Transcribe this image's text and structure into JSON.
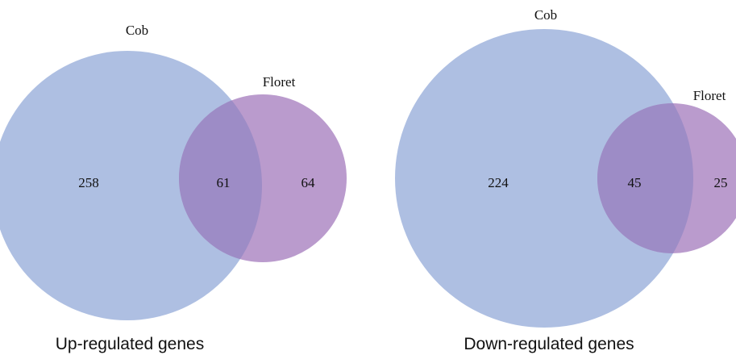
{
  "colors": {
    "cob_fill": "#aebfe2",
    "floret_fill": "#ba9bcd",
    "overlap_fill": "#9d8cc6",
    "text": "#111111",
    "background": "#ffffff"
  },
  "panels": [
    {
      "title": "Up-regulated genes",
      "cob_label": "Cob",
      "floret_label": "Floret",
      "counts": {
        "cob_only": "258",
        "overlap": "61",
        "floret_only": "64"
      }
    },
    {
      "title": "Down-regulated genes",
      "cob_label": "Cob",
      "floret_label": "Floret",
      "counts": {
        "cob_only": "224",
        "overlap": "45",
        "floret_only": "25"
      }
    }
  ]
}
